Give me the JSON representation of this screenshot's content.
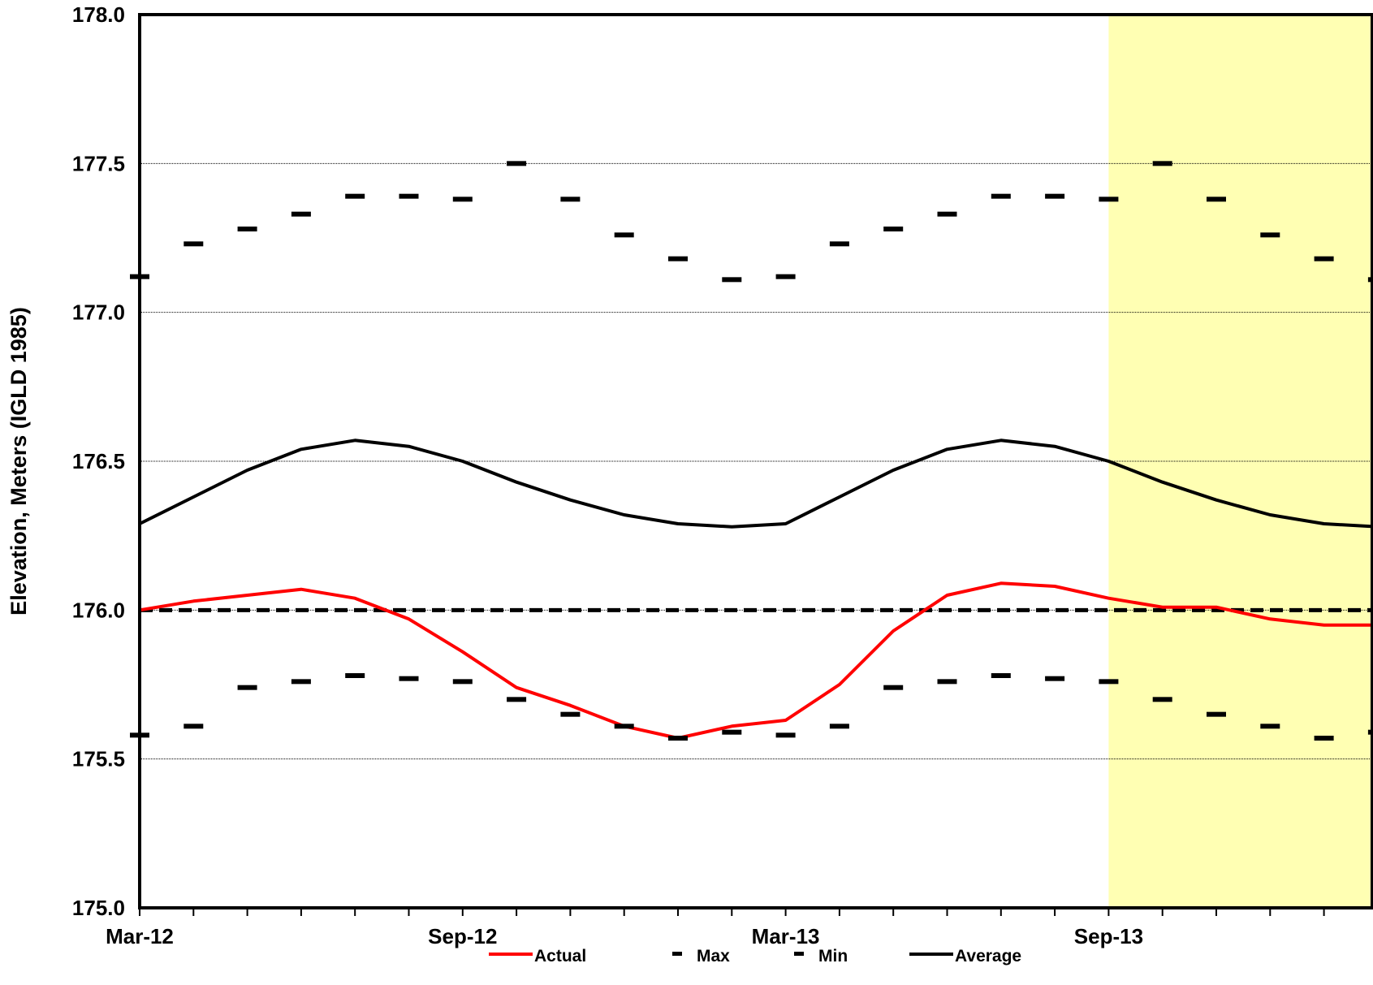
{
  "chart_data": {
    "type": "line",
    "title": "",
    "xlabel": "",
    "ylabel": "Elevation, Meters (IGLD 1985)",
    "ylim": [
      175.0,
      178.0
    ],
    "y_ticks": [
      "175.0",
      "175.5",
      "176.0",
      "176.5",
      "177.0",
      "177.5",
      "178.0"
    ],
    "x_range": [
      "2012-03",
      "2014-02"
    ],
    "x_ticks": [
      {
        "date": "2012-03",
        "label": "Mar-12"
      },
      {
        "date": "2012-09",
        "label": "Sep-12"
      },
      {
        "date": "2013-03",
        "label": "Mar-13"
      },
      {
        "date": "2013-09",
        "label": "Sep-13"
      }
    ],
    "grid": true,
    "legend_position": "bottom",
    "forecast_region": {
      "from": "2013-09",
      "to": "2014-02",
      "color": "#ffff99"
    },
    "reference_line": {
      "y": 176.0,
      "style": "dashed",
      "color": "#000000"
    },
    "x": [
      "2012-03",
      "2012-04",
      "2012-05",
      "2012-06",
      "2012-07",
      "2012-08",
      "2012-09",
      "2012-10",
      "2012-11",
      "2012-12",
      "2013-01",
      "2013-02",
      "2013-03",
      "2013-04",
      "2013-05",
      "2013-06",
      "2013-07",
      "2013-08",
      "2013-09",
      "2013-10",
      "2013-11",
      "2013-12",
      "2014-01",
      "2014-02"
    ],
    "series": [
      {
        "name": "Actual",
        "style": "line",
        "color": "#ff0000",
        "values": [
          176.0,
          176.03,
          176.05,
          176.07,
          176.04,
          175.97,
          175.86,
          175.74,
          175.68,
          175.61,
          175.57,
          175.61,
          175.63,
          175.75,
          175.93,
          176.05,
          176.09,
          176.08,
          176.04,
          176.01,
          176.01,
          175.97,
          175.95,
          175.95
        ]
      },
      {
        "name": "Max",
        "style": "marker",
        "color": "#000000",
        "values": [
          177.12,
          177.23,
          177.28,
          177.33,
          177.39,
          177.39,
          177.38,
          177.5,
          177.38,
          177.26,
          177.18,
          177.11,
          177.12,
          177.23,
          177.28,
          177.33,
          177.39,
          177.39,
          177.38,
          177.5,
          177.38,
          177.26,
          177.18,
          177.11
        ]
      },
      {
        "name": "Min",
        "style": "marker",
        "color": "#000000",
        "values": [
          175.58,
          175.61,
          175.74,
          175.76,
          175.78,
          175.77,
          175.76,
          175.7,
          175.65,
          175.61,
          175.57,
          175.59,
          175.58,
          175.61,
          175.74,
          175.76,
          175.78,
          175.77,
          175.76,
          175.7,
          175.65,
          175.61,
          175.57,
          175.59
        ]
      },
      {
        "name": "Average",
        "style": "line",
        "color": "#000000",
        "values": [
          176.29,
          176.38,
          176.47,
          176.54,
          176.57,
          176.55,
          176.5,
          176.43,
          176.37,
          176.32,
          176.29,
          176.28,
          176.29,
          176.38,
          176.47,
          176.54,
          176.57,
          176.55,
          176.5,
          176.43,
          176.37,
          176.32,
          176.29,
          176.28
        ]
      }
    ]
  }
}
